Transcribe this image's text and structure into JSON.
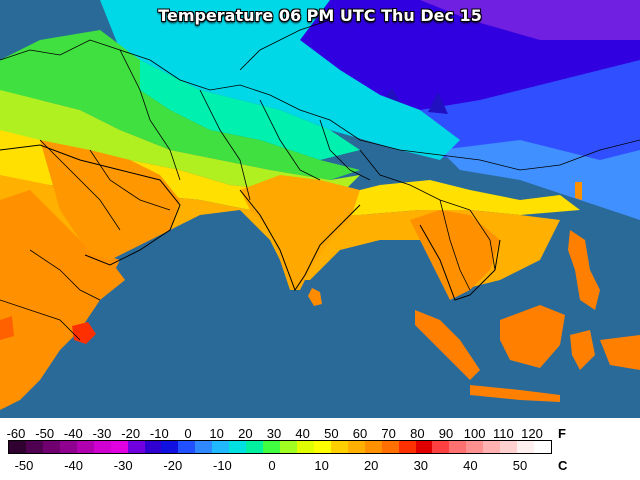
{
  "title": "Temperature 06 PM UTC Thu Dec 15",
  "legend": {
    "fahrenheit_ticks": [
      "-60",
      "-50",
      "-40",
      "-30",
      "-20",
      "-10",
      "0",
      "10",
      "20",
      "30",
      "40",
      "50",
      "60",
      "70",
      "80",
      "90",
      "100",
      "110",
      "120"
    ],
    "celsius_ticks": [
      "-50",
      "-40",
      "-30",
      "-20",
      "-10",
      "0",
      "10",
      "20",
      "30",
      "40",
      "50"
    ],
    "unit_f": "F",
    "unit_c": "C",
    "colors": [
      "#300030",
      "#500050",
      "#700070",
      "#900090",
      "#b000b0",
      "#d000d0",
      "#e000e0",
      "#7000e0",
      "#3000d0",
      "#1010e0",
      "#2050ff",
      "#3088ff",
      "#20b8ff",
      "#00e0e0",
      "#00f0a0",
      "#40ff40",
      "#a0ff20",
      "#e0ff00",
      "#ffff00",
      "#ffd000",
      "#ffb000",
      "#ff9000",
      "#ff7000",
      "#ff3000",
      "#e00000",
      "#ff4040",
      "#ff7070",
      "#ff9090",
      "#ffb0b0",
      "#ffd0d0",
      "#fff0f0",
      "#ffffff"
    ]
  },
  "colors": {
    "ocean": "#2a6a99",
    "border": "#000000"
  }
}
